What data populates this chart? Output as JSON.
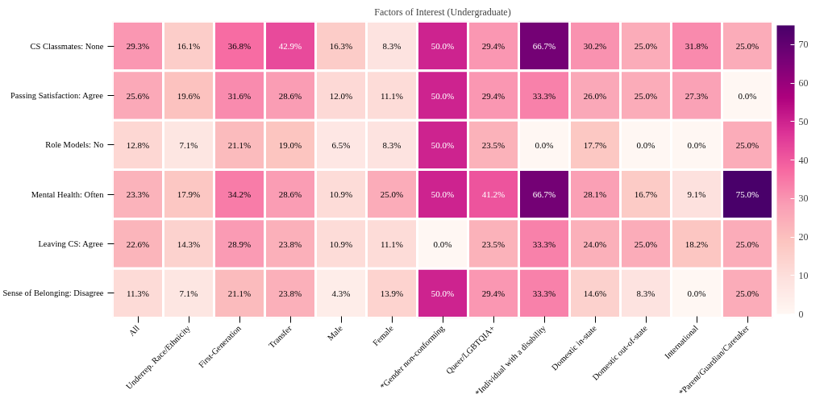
{
  "chart_data": {
    "type": "heatmap",
    "title": "Factors of Interest (Undergraduate)",
    "categories": [
      "All",
      "Underrep. Race/Ethnicity",
      "First-Generation",
      "Transfer",
      "Male",
      "Female",
      "*Gender non-conforming",
      "Queer/LGBTQIA+",
      "*Individual with a disability",
      "Domestic in-state",
      "Domestic out-of-state",
      "International",
      "*Parent/Guardian/Caretaker"
    ],
    "y_categories": [
      "CS Classmates: None",
      "Passing Satisfaction: Agree",
      "Role Models: No",
      "Mental Health: Often",
      "Leaving CS: Agree",
      "Sense of Belonging: Disagree"
    ],
    "cells": [
      [
        29.3,
        16.1,
        36.8,
        42.9,
        16.3,
        8.3,
        50.0,
        29.4,
        66.7,
        30.2,
        25.0,
        31.8,
        25.0
      ],
      [
        25.6,
        19.6,
        31.6,
        28.6,
        12.0,
        11.1,
        50.0,
        29.4,
        33.3,
        26.0,
        25.0,
        27.3,
        0.0
      ],
      [
        12.8,
        7.1,
        21.1,
        19.0,
        6.5,
        8.3,
        50.0,
        23.5,
        0.0,
        17.7,
        0.0,
        0.0,
        25.0
      ],
      [
        23.3,
        17.9,
        34.2,
        28.6,
        10.9,
        25.0,
        50.0,
        41.2,
        66.7,
        28.1,
        16.7,
        9.1,
        75.0
      ],
      [
        22.6,
        14.3,
        28.9,
        23.8,
        10.9,
        11.1,
        0.0,
        23.5,
        33.3,
        24.0,
        25.0,
        18.2,
        25.0
      ],
      [
        11.3,
        7.1,
        21.1,
        23.8,
        4.3,
        13.9,
        50.0,
        29.4,
        33.3,
        14.6,
        8.3,
        0.0,
        25.0
      ]
    ],
    "cell_labels": [
      [
        "29.3%",
        "16.1%",
        "36.8%",
        "42.9%",
        "16.3%",
        "8.3%",
        "50.0%",
        "29.4%",
        "66.7%",
        "30.2%",
        "25.0%",
        "31.8%",
        "25.0%"
      ],
      [
        "25.6%",
        "19.6%",
        "31.6%",
        "28.6%",
        "12.0%",
        "11.1%",
        "50.0%",
        "29.4%",
        "33.3%",
        "26.0%",
        "25.0%",
        "27.3%",
        "0.0%"
      ],
      [
        "12.8%",
        "7.1%",
        "21.1%",
        "19.0%",
        "6.5%",
        "8.3%",
        "50.0%",
        "23.5%",
        "0.0%",
        "17.7%",
        "0.0%",
        "0.0%",
        "25.0%"
      ],
      [
        "23.3%",
        "17.9%",
        "34.2%",
        "28.6%",
        "10.9%",
        "25.0%",
        "50.0%",
        "41.2%",
        "66.7%",
        "28.1%",
        "16.7%",
        "9.1%",
        "75.0%"
      ],
      [
        "22.6%",
        "14.3%",
        "28.9%",
        "23.8%",
        "10.9%",
        "11.1%",
        "0.0%",
        "23.5%",
        "33.3%",
        "24.0%",
        "25.0%",
        "18.2%",
        "25.0%"
      ],
      [
        "11.3%",
        "7.1%",
        "21.1%",
        "23.8%",
        "4.3%",
        "13.9%",
        "50.0%",
        "29.4%",
        "33.3%",
        "14.6%",
        "8.3%",
        "0.0%",
        "25.0%"
      ]
    ],
    "clim": [
      0,
      75
    ],
    "cticks": [
      0,
      10,
      20,
      30,
      40,
      50,
      60,
      70
    ]
  }
}
